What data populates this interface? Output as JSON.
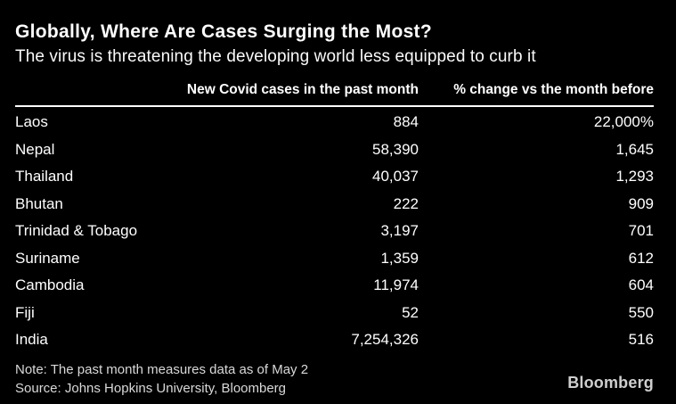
{
  "chart_data": {
    "type": "table",
    "title": "Globally, Where Are Cases Surging the Most?",
    "subtitle": "The virus is threatening the developing world less equipped to curb it",
    "columns": [
      {
        "label": "New Covid cases in the past month"
      },
      {
        "label": "% change vs the month before"
      }
    ],
    "rows": [
      {
        "country": "Laos",
        "new_cases": "884",
        "pct_change": "22,000%"
      },
      {
        "country": "Nepal",
        "new_cases": "58,390",
        "pct_change": "1,645"
      },
      {
        "country": "Thailand",
        "new_cases": "40,037",
        "pct_change": "1,293"
      },
      {
        "country": "Bhutan",
        "new_cases": "222",
        "pct_change": "909"
      },
      {
        "country": "Trinidad & Tobago",
        "new_cases": "3,197",
        "pct_change": "701"
      },
      {
        "country": "Suriname",
        "new_cases": "1,359",
        "pct_change": "612"
      },
      {
        "country": "Cambodia",
        "new_cases": "11,974",
        "pct_change": "604"
      },
      {
        "country": "Fiji",
        "new_cases": "52",
        "pct_change": "550"
      },
      {
        "country": "India",
        "new_cases": "7,254,326",
        "pct_change": "516"
      }
    ],
    "note": "Note: The past month measures data as of May 2",
    "source": "Source: Johns Hopkins University, Bloomberg",
    "brand": "Bloomberg",
    "layout": {
      "legend_position": "none",
      "grid": "off"
    },
    "colors": {
      "background": "#000000",
      "text": "#ffffff",
      "muted_text": "#d9d9d9",
      "brand_text": "#cfcfcf",
      "divider": "#ffffff"
    }
  }
}
